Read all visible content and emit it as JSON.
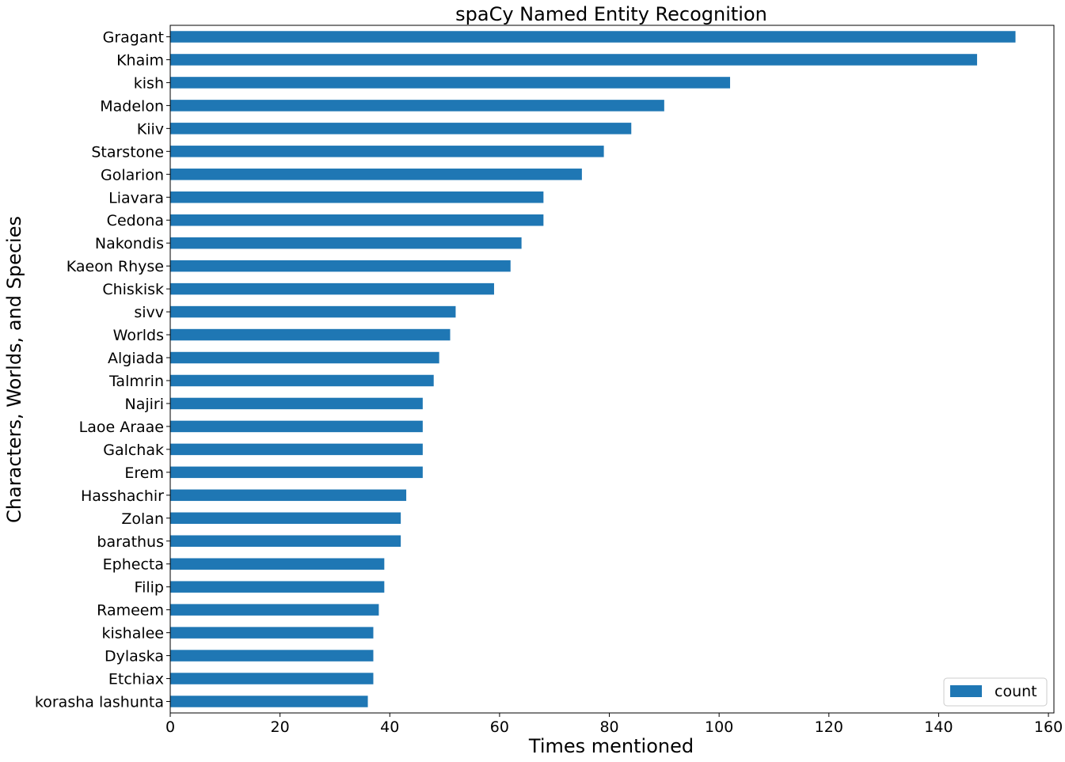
{
  "chart_data": {
    "type": "bar",
    "orientation": "horizontal",
    "title": "spaCy Named Entity Recognition",
    "xlabel": "Times mentioned",
    "ylabel": "Characters, Worlds, and Species",
    "xlim": [
      0,
      161
    ],
    "xticks": [
      0,
      20,
      40,
      60,
      80,
      100,
      120,
      140,
      160
    ],
    "grid": false,
    "legend": {
      "entries": [
        "count"
      ],
      "placement": "bottom-right"
    },
    "bar_color": "#1f77b4",
    "categories": [
      "Gragant",
      "Khaim",
      "kish",
      "Madelon",
      "Kiiv",
      "Starstone",
      "Golarion",
      "Liavara",
      "Cedona",
      "Nakondis",
      "Kaeon Rhyse",
      "Chiskisk",
      "sivv",
      "Worlds",
      "Algiada",
      "Talmrin",
      "Najiri",
      "Laoe Araae",
      "Galchak",
      "Erem",
      "Hasshachir",
      "Zolan",
      "barathus",
      "Ephecta",
      "Filip",
      "Rameem",
      "kishalee",
      "Dylaska",
      "Etchiax",
      "korasha lashunta"
    ],
    "series": [
      {
        "name": "count",
        "values": [
          154,
          147,
          102,
          90,
          84,
          79,
          75,
          68,
          68,
          64,
          62,
          59,
          52,
          51,
          49,
          48,
          46,
          46,
          46,
          46,
          43,
          42,
          42,
          39,
          39,
          38,
          37,
          37,
          37,
          36
        ]
      }
    ]
  }
}
